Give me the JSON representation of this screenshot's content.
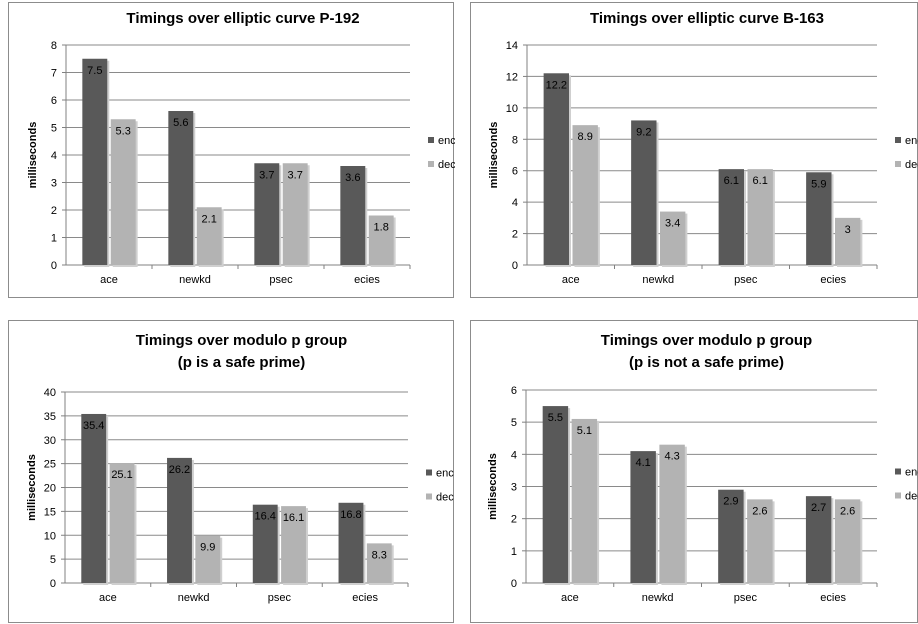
{
  "chart_data": [
    {
      "type": "bar",
      "title": "Timings over elliptic curve P-192",
      "xlabel": "",
      "ylabel": "milliseconds",
      "categories": [
        "ace",
        "newkd",
        "psec",
        "ecies"
      ],
      "ylim": [
        0,
        8
      ],
      "ystep": 1,
      "legend_position": "right",
      "series": [
        {
          "name": "enc",
          "color": "#595959",
          "values": [
            7.5,
            5.6,
            3.7,
            3.6
          ]
        },
        {
          "name": "dec",
          "color": "#b3b3b3",
          "values": [
            5.3,
            2.1,
            3.7,
            1.8
          ]
        }
      ]
    },
    {
      "type": "bar",
      "title": "Timings over elliptic curve B-163",
      "xlabel": "",
      "ylabel": "milliseconds",
      "categories": [
        "ace",
        "newkd",
        "psec",
        "ecies"
      ],
      "ylim": [
        0,
        14
      ],
      "ystep": 2,
      "legend_position": "right",
      "series": [
        {
          "name": "enc",
          "color": "#595959",
          "values": [
            12.2,
            9.2,
            6.1,
            5.9
          ]
        },
        {
          "name": "dec",
          "color": "#b3b3b3",
          "values": [
            8.9,
            3.4,
            6.1,
            3
          ]
        }
      ]
    },
    {
      "type": "bar",
      "title": "Timings over modulo p group",
      "subtitle": "(p is a safe prime)",
      "xlabel": "",
      "ylabel": "milliseconds",
      "categories": [
        "ace",
        "newkd",
        "psec",
        "ecies"
      ],
      "ylim": [
        0,
        40
      ],
      "ystep": 5,
      "legend_position": "right",
      "series": [
        {
          "name": "enc",
          "color": "#595959",
          "values": [
            35.4,
            26.2,
            16.4,
            16.8
          ]
        },
        {
          "name": "dec",
          "color": "#b3b3b3",
          "values": [
            25.1,
            9.9,
            16.1,
            8.3
          ]
        }
      ]
    },
    {
      "type": "bar",
      "title": "Timings over modulo p group",
      "subtitle": "(p is not a safe prime)",
      "xlabel": "",
      "ylabel": "milliseconds",
      "categories": [
        "ace",
        "newkd",
        "psec",
        "ecies"
      ],
      "ylim": [
        0,
        6
      ],
      "ystep": 1,
      "legend_position": "right",
      "series": [
        {
          "name": "enc",
          "color": "#595959",
          "values": [
            5.5,
            4.1,
            2.9,
            2.7
          ]
        },
        {
          "name": "dec",
          "color": "#b3b3b3",
          "values": [
            5.1,
            4.3,
            2.6,
            2.6
          ]
        }
      ]
    }
  ]
}
